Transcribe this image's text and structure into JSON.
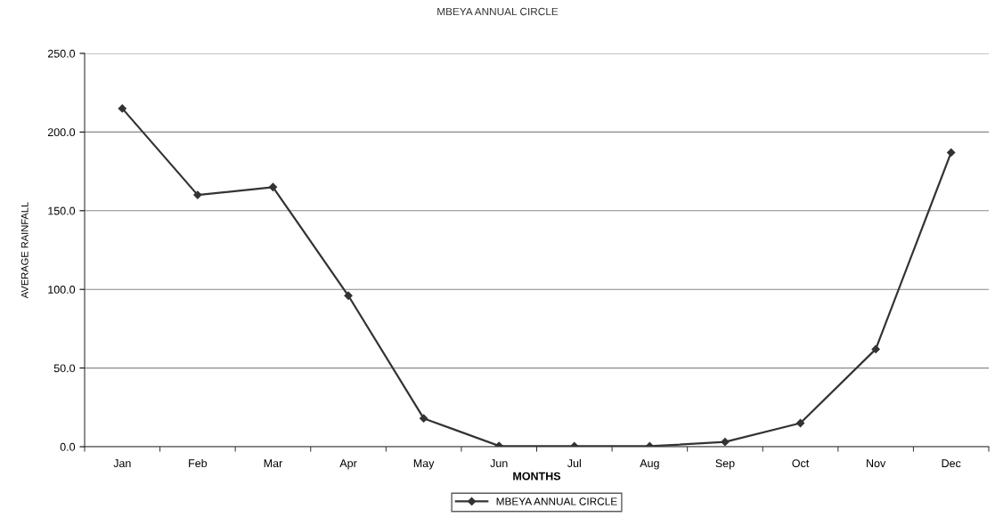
{
  "chart_data": {
    "type": "line",
    "title": "MBEYA ANNUAL CIRCLE",
    "xlabel": "MONTHS",
    "ylabel": "AVERAGE RAINFALL",
    "categories": [
      "Jan",
      "Feb",
      "Mar",
      "Apr",
      "May",
      "Jun",
      "Jul",
      "Aug",
      "Sep",
      "Oct",
      "Nov",
      "Dec"
    ],
    "series": [
      {
        "name": "MBEYA ANNUAL CIRCLE",
        "color": "#333333",
        "values": [
          215,
          160,
          165,
          96,
          18,
          0.5,
          0.3,
          0.3,
          3,
          15,
          62,
          187
        ]
      }
    ],
    "ylim": [
      0,
      250
    ],
    "yticks": [
      {
        "value": 0,
        "label": "0.0"
      },
      {
        "value": 50,
        "label": "50.0"
      },
      {
        "value": 100,
        "label": "100.0"
      },
      {
        "value": 150,
        "label": "150.0"
      },
      {
        "value": 200,
        "label": "200.0"
      },
      {
        "value": 250,
        "label": "250.0"
      }
    ],
    "grid": "y",
    "legend": "bottom",
    "marker": "diamond",
    "line_style": "solid"
  }
}
